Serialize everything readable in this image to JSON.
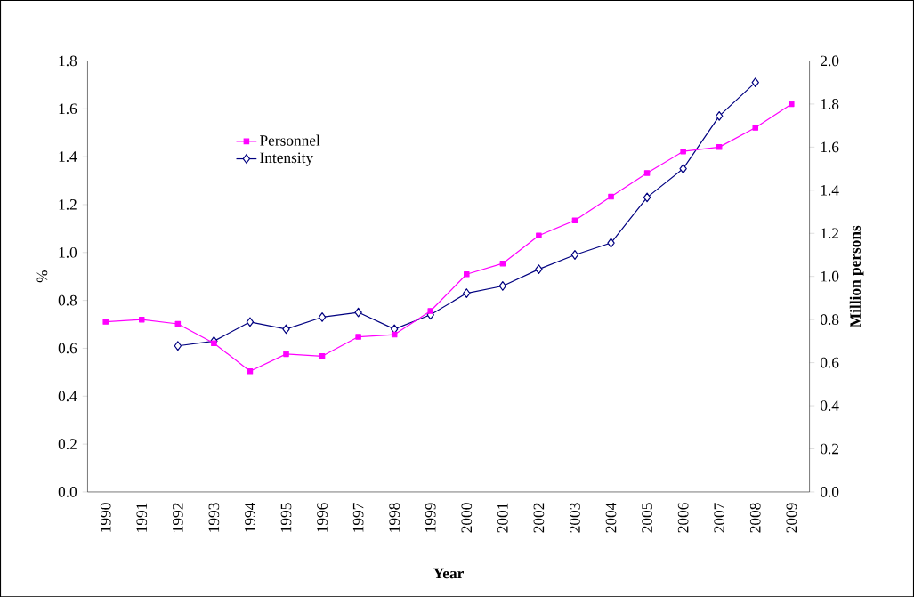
{
  "chart_data": {
    "type": "line",
    "xlabel": "Year",
    "ylabel": "%",
    "y2label": "Million persons",
    "categories": [
      "1990",
      "1991",
      "1992",
      "1993",
      "1994",
      "1995",
      "1996",
      "1997",
      "1998",
      "1999",
      "2000",
      "2001",
      "2002",
      "2003",
      "2004",
      "2005",
      "2006",
      "2007",
      "2008",
      "2009"
    ],
    "series": [
      {
        "name": "Personnel",
        "color": "#ff00ff",
        "marker": "square",
        "axis": "y2",
        "values": [
          0.79,
          0.8,
          0.78,
          0.69,
          0.56,
          0.64,
          0.63,
          0.72,
          0.73,
          0.84,
          1.01,
          1.06,
          1.19,
          1.26,
          1.37,
          1.48,
          1.58,
          1.6,
          1.69,
          1.8
        ]
      },
      {
        "name": "Intensity",
        "color": "#000080",
        "marker": "diamond",
        "values": [
          null,
          null,
          0.61,
          0.63,
          0.71,
          0.68,
          0.73,
          0.75,
          0.68,
          0.74,
          0.83,
          0.86,
          0.93,
          0.99,
          1.04,
          1.23,
          1.35,
          1.57,
          1.71,
          null
        ]
      }
    ],
    "ylim": [
      0,
      1.8
    ],
    "yticks": [
      {
        "value": 0,
        "label": "0.0"
      },
      0.2,
      0.4,
      0.6,
      0.8,
      {
        "value": 1,
        "label": "1.0"
      },
      1.2,
      1.4,
      1.6,
      1.8
    ],
    "y2lim": [
      0,
      2
    ],
    "y2ticks": [
      {
        "value": 0,
        "label": "0.0"
      },
      0.2,
      0.4,
      0.6,
      0.8,
      {
        "value": 1,
        "label": "1.0"
      },
      1.2,
      1.4,
      1.6,
      1.8,
      {
        "value": 2,
        "label": "2.0"
      }
    ],
    "legend": "top left"
  }
}
